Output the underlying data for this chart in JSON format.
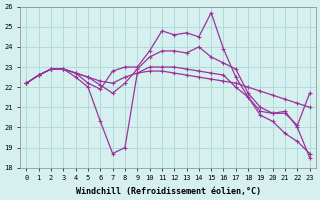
{
  "xlabel": "Windchill (Refroidissement éolien,°C)",
  "background_color": "#d6f0f0",
  "grid_color": "#b0dada",
  "line_color": "#993399",
  "x": [
    0,
    1,
    2,
    3,
    4,
    5,
    6,
    7,
    8,
    9,
    10,
    11,
    12,
    13,
    14,
    15,
    16,
    17,
    18,
    19,
    20,
    21,
    22,
    23
  ],
  "line1": [
    22.2,
    22.6,
    22.9,
    22.9,
    22.7,
    22.5,
    22.3,
    22.2,
    22.5,
    22.7,
    22.8,
    22.8,
    22.7,
    22.6,
    22.5,
    22.4,
    22.3,
    22.2,
    22.0,
    21.8,
    21.6,
    21.4,
    21.2,
    21.0
  ],
  "line2": [
    22.2,
    22.6,
    22.9,
    22.9,
    22.7,
    22.5,
    22.1,
    21.7,
    22.2,
    22.9,
    23.5,
    23.8,
    23.8,
    23.7,
    24.0,
    23.5,
    23.2,
    22.9,
    21.7,
    21.0,
    20.7,
    20.7,
    20.1,
    21.7
  ],
  "line3": [
    22.2,
    22.6,
    22.9,
    22.9,
    22.7,
    22.2,
    21.9,
    22.8,
    23.0,
    23.0,
    23.8,
    24.8,
    24.6,
    24.7,
    24.5,
    25.7,
    23.9,
    22.5,
    21.5,
    20.8,
    20.7,
    20.8,
    20.0,
    18.5
  ],
  "line4": [
    22.2,
    22.6,
    22.9,
    22.9,
    22.5,
    22.0,
    20.3,
    18.7,
    19.0,
    22.7,
    23.0,
    23.0,
    23.0,
    22.9,
    22.8,
    22.7,
    22.6,
    22.0,
    21.5,
    20.6,
    20.3,
    19.7,
    19.3,
    18.7
  ],
  "ylim": [
    18,
    26
  ],
  "xlim": [
    -0.5,
    23.5
  ],
  "yticks": [
    18,
    19,
    20,
    21,
    22,
    23,
    24,
    25,
    26
  ],
  "xticks": [
    0,
    1,
    2,
    3,
    4,
    5,
    6,
    7,
    8,
    9,
    10,
    11,
    12,
    13,
    14,
    15,
    16,
    17,
    18,
    19,
    20,
    21,
    22,
    23
  ]
}
